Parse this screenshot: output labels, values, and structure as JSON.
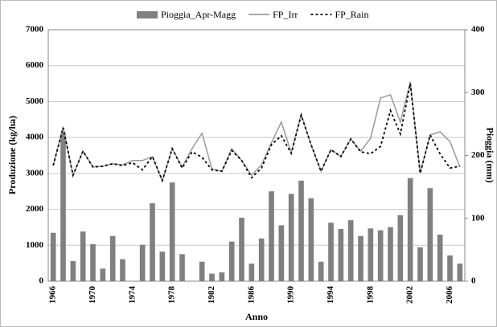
{
  "chart_data": {
    "type": "bar_line",
    "xlabel": "Anno",
    "ylabel": "Produzione (kg/ha)",
    "y2label": "Pioggia (mm)",
    "categories": [
      "1966",
      null,
      null,
      null,
      "1970",
      null,
      null,
      null,
      "1974",
      null,
      null,
      null,
      "1978",
      null,
      null,
      null,
      "1982",
      null,
      null,
      null,
      "1986",
      null,
      null,
      null,
      "1990",
      null,
      null,
      null,
      "1994",
      null,
      null,
      null,
      "1998",
      null,
      null,
      null,
      "2002",
      null,
      null,
      null,
      "2006",
      null
    ],
    "series": [
      {
        "name": "Pioggia_Apr-Magg",
        "type": "bar",
        "axis": "y2",
        "color": "#808080",
        "values": [
          77,
          236,
          32,
          79,
          59,
          20,
          72,
          35,
          0,
          58,
          124,
          47,
          157,
          43,
          0,
          31,
          12,
          14,
          63,
          101,
          28,
          68,
          143,
          89,
          139,
          160,
          132,
          31,
          93,
          83,
          97,
          72,
          84,
          81,
          86,
          105,
          164,
          54,
          148,
          74,
          41,
          28
        ]
      },
      {
        "name": "FP_Irr",
        "type": "line",
        "color": "#9a9a9a",
        "dash": false,
        "values": [
          3220,
          4300,
          2950,
          3620,
          3180,
          3200,
          3270,
          3240,
          3360,
          3360,
          3470,
          2800,
          3690,
          3180,
          3690,
          4120,
          3130,
          3060,
          3690,
          3360,
          2950,
          3240,
          3850,
          4430,
          3580,
          4650,
          3800,
          3060,
          3660,
          3470,
          3960,
          3620,
          3980,
          5100,
          5190,
          4430,
          5550,
          3020,
          4070,
          4160,
          3890,
          3180
        ]
      },
      {
        "name": "FP_Rain",
        "type": "line",
        "color": "#000000",
        "dash": true,
        "values": [
          3220,
          4270,
          2950,
          3620,
          3180,
          3200,
          3270,
          3220,
          3300,
          3100,
          3470,
          2800,
          3690,
          3150,
          3600,
          3450,
          3100,
          3060,
          3640,
          3360,
          2880,
          3150,
          3800,
          4050,
          3560,
          4620,
          3800,
          3060,
          3660,
          3470,
          3960,
          3600,
          3550,
          3750,
          4750,
          4100,
          5500,
          3000,
          4070,
          3550,
          3150,
          3200
        ]
      }
    ],
    "ylim": [
      0,
      7000
    ],
    "yticks": [
      0,
      1000,
      2000,
      3000,
      4000,
      5000,
      6000,
      7000
    ],
    "y2lim": [
      0,
      400
    ],
    "y2ticks": [
      0,
      100,
      200,
      300,
      400
    ],
    "grid": true,
    "legend": "top"
  }
}
